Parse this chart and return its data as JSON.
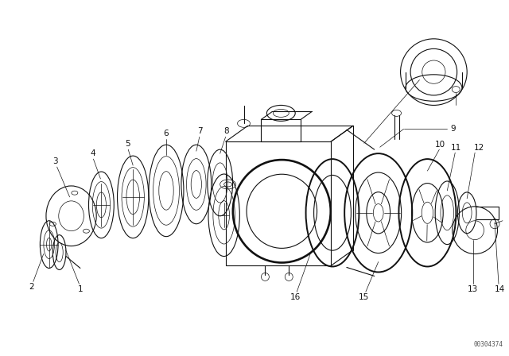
{
  "bg_color": "#ffffff",
  "line_color": "#111111",
  "fig_width": 6.4,
  "fig_height": 4.48,
  "dpi": 100,
  "watermark": "00304374",
  "lw_heavy": 1.4,
  "lw_med": 0.8,
  "lw_thin": 0.5,
  "ew": 0.38,
  "label_fs": 7.5
}
